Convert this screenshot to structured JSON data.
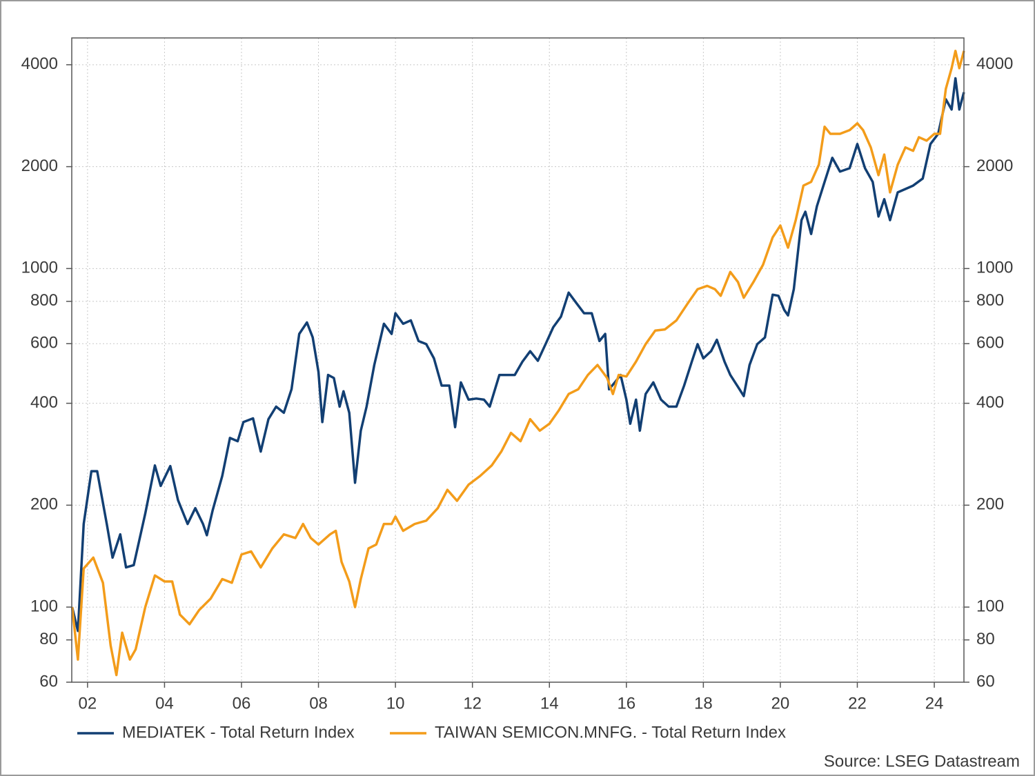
{
  "chart_data": {
    "type": "line",
    "ylog": true,
    "grid": true,
    "legend": "bottom",
    "source": "Source: LSEG Datastream",
    "xlim": [
      2001.59,
      2024.77
    ],
    "ylim": [
      60,
      4800
    ],
    "xticks": [
      {
        "value": 2002,
        "label": "02"
      },
      {
        "value": 2004,
        "label": "04"
      },
      {
        "value": 2006,
        "label": "06"
      },
      {
        "value": 2008,
        "label": "08"
      },
      {
        "value": 2010,
        "label": "10"
      },
      {
        "value": 2012,
        "label": "12"
      },
      {
        "value": 2014,
        "label": "14"
      },
      {
        "value": 2016,
        "label": "16"
      },
      {
        "value": 2018,
        "label": "18"
      },
      {
        "value": 2020,
        "label": "20"
      },
      {
        "value": 2022,
        "label": "22"
      },
      {
        "value": 2024,
        "label": "24"
      }
    ],
    "yticks": [
      60,
      80,
      100,
      200,
      400,
      600,
      800,
      1000,
      2000,
      4000
    ],
    "series": [
      {
        "name": "MEDIATEK - Total Return Index",
        "color": "#123f73",
        "x": [
          2001.6,
          2001.75,
          2001.9,
          2002.1,
          2002.25,
          2002.5,
          2002.65,
          2002.85,
          2003.0,
          2003.2,
          2003.5,
          2003.75,
          2003.9,
          2004.15,
          2004.35,
          2004.6,
          2004.8,
          2005.0,
          2005.1,
          2005.25,
          2005.5,
          2005.7,
          2005.9,
          2006.05,
          2006.3,
          2006.5,
          2006.7,
          2006.9,
          2007.1,
          2007.3,
          2007.5,
          2007.7,
          2007.85,
          2008.0,
          2008.1,
          2008.25,
          2008.4,
          2008.55,
          2008.65,
          2008.8,
          2008.95,
          2009.1,
          2009.25,
          2009.45,
          2009.7,
          2009.9,
          2010.0,
          2010.2,
          2010.4,
          2010.6,
          2010.8,
          2011.0,
          2011.2,
          2011.4,
          2011.55,
          2011.7,
          2011.9,
          2012.1,
          2012.3,
          2012.45,
          2012.7,
          2012.9,
          2013.1,
          2013.3,
          2013.5,
          2013.7,
          2013.9,
          2014.1,
          2014.3,
          2014.5,
          2014.7,
          2014.9,
          2015.1,
          2015.3,
          2015.45,
          2015.55,
          2015.7,
          2015.85,
          2016.0,
          2016.1,
          2016.25,
          2016.35,
          2016.5,
          2016.7,
          2016.9,
          2017.1,
          2017.3,
          2017.5,
          2017.7,
          2017.85,
          2018.0,
          2018.2,
          2018.35,
          2018.55,
          2018.7,
          2018.9,
          2019.05,
          2019.2,
          2019.4,
          2019.6,
          2019.8,
          2019.95,
          2020.1,
          2020.2,
          2020.35,
          2020.55,
          2020.65,
          2020.8,
          2020.95,
          2021.15,
          2021.35,
          2021.55,
          2021.8,
          2022.0,
          2022.2,
          2022.4,
          2022.55,
          2022.7,
          2022.85,
          2023.05,
          2023.25,
          2023.45,
          2023.7,
          2023.9,
          2024.1,
          2024.3,
          2024.45,
          2024.55,
          2024.65,
          2024.77
        ],
        "values": [
          100,
          85,
          176,
          252,
          252,
          176,
          140,
          164,
          131,
          133,
          189,
          262,
          228,
          261,
          207,
          176,
          196,
          176,
          163,
          193,
          244,
          316,
          309,
          352,
          361,
          288,
          359,
          391,
          375,
          440,
          641,
          693,
          626,
          495,
          352,
          485,
          475,
          391,
          434,
          375,
          233,
          332,
          391,
          519,
          687,
          641,
          738,
          687,
          703,
          611,
          598,
          543,
          451,
          451,
          340,
          461,
          410,
          413,
          410,
          391,
          485,
          485,
          485,
          531,
          570,
          534,
          598,
          671,
          721,
          849,
          791,
          738,
          738,
          611,
          641,
          440,
          461,
          485,
          410,
          348,
          410,
          332,
          426,
          461,
          410,
          391,
          391,
          451,
          531,
          598,
          543,
          570,
          616,
          531,
          485,
          447,
          420,
          519,
          598,
          626,
          837,
          831,
          755,
          727,
          869,
          1390,
          1472,
          1265,
          1528,
          1803,
          2124,
          1934,
          1979,
          2333,
          1979,
          1803,
          1425,
          1603,
          1390,
          1679,
          1718,
          1758,
          1845,
          2333,
          2500,
          3162,
          2950,
          3648,
          2950,
          3318
        ]
      },
      {
        "name": "TAIWAN SEMICON.MNFG. - Total Return Index",
        "color": "#f39c1a",
        "x": [
          2001.6,
          2001.75,
          2001.9,
          2002.15,
          2002.4,
          2002.6,
          2002.75,
          2002.9,
          2003.1,
          2003.25,
          2003.5,
          2003.75,
          2004.0,
          2004.2,
          2004.4,
          2004.65,
          2004.9,
          2005.2,
          2005.5,
          2005.75,
          2006.0,
          2006.25,
          2006.5,
          2006.8,
          2007.1,
          2007.4,
          2007.6,
          2007.8,
          2008.0,
          2008.3,
          2008.45,
          2008.6,
          2008.8,
          2008.95,
          2009.1,
          2009.3,
          2009.5,
          2009.7,
          2009.9,
          2010.0,
          2010.2,
          2010.5,
          2010.8,
          2011.1,
          2011.35,
          2011.6,
          2011.9,
          2012.2,
          2012.5,
          2012.75,
          2013.0,
          2013.25,
          2013.5,
          2013.75,
          2014.0,
          2014.25,
          2014.5,
          2014.75,
          2015.0,
          2015.25,
          2015.5,
          2015.65,
          2015.8,
          2016.0,
          2016.25,
          2016.5,
          2016.75,
          2017.0,
          2017.3,
          2017.6,
          2017.85,
          2018.1,
          2018.3,
          2018.45,
          2018.7,
          2018.9,
          2019.05,
          2019.3,
          2019.55,
          2019.8,
          2020.0,
          2020.2,
          2020.4,
          2020.6,
          2020.8,
          2021.0,
          2021.15,
          2021.3,
          2021.55,
          2021.8,
          2022.0,
          2022.15,
          2022.35,
          2022.55,
          2022.7,
          2022.85,
          2023.05,
          2023.25,
          2023.45,
          2023.6,
          2023.8,
          2024.0,
          2024.15,
          2024.3,
          2024.45,
          2024.55,
          2024.65,
          2024.77
        ],
        "values": [
          100,
          70,
          130,
          140,
          118,
          77,
          63,
          84,
          70,
          75,
          100,
          124,
          119,
          119,
          95,
          89,
          98,
          106,
          121,
          118,
          143,
          146,
          131,
          149,
          164,
          160,
          176,
          160,
          153,
          164,
          168,
          136,
          119,
          100,
          121,
          149,
          153,
          176,
          176,
          185,
          168,
          176,
          180,
          196,
          222,
          206,
          230,
          244,
          262,
          288,
          327,
          309,
          359,
          332,
          348,
          382,
          426,
          440,
          485,
          519,
          475,
          426,
          485,
          480,
          531,
          598,
          656,
          661,
          703,
          791,
          869,
          889,
          869,
          831,
          977,
          912,
          820,
          912,
          1026,
          1236,
          1340,
          1153,
          1390,
          1758,
          1803,
          2027,
          2624,
          2500,
          2500,
          2564,
          2685,
          2564,
          2280,
          1888,
          2172,
          1679,
          2027,
          2280,
          2227,
          2443,
          2387,
          2500,
          2500,
          3396,
          3908,
          4395,
          3908,
          4395
        ]
      }
    ]
  }
}
